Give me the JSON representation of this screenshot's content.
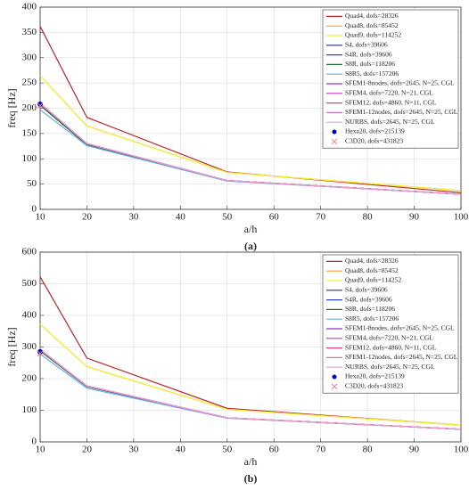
{
  "chart_data": [
    {
      "type": "line",
      "xlabel": "a/h",
      "ylabel": "freq [Hz]",
      "caption": "(a)",
      "x": [
        10,
        20,
        50,
        100
      ],
      "xlim": [
        10,
        100
      ],
      "xticks": [
        10,
        20,
        30,
        40,
        50,
        60,
        70,
        80,
        90,
        100
      ],
      "ylim": [
        0,
        400
      ],
      "yticks": [
        0,
        50,
        100,
        150,
        200,
        250,
        300,
        350,
        400
      ],
      "grid": true,
      "legend": "upper right",
      "series": [
        {
          "name": "Quad4, dofs=28326",
          "color": "#b5272d",
          "values": [
            362,
            182,
            74,
            33
          ]
        },
        {
          "name": "Quad8, dofs=85452",
          "color": "#f0a030",
          "values": [
            265,
            165,
            73,
            37
          ]
        },
        {
          "name": "Quad9, dofs=114252",
          "color": "#f2f230",
          "values": [
            265,
            165,
            73,
            37
          ]
        },
        {
          "name": "S4, dofs=39606",
          "color": "#2a2a80",
          "values": [
            206,
            128,
            57,
            30
          ]
        },
        {
          "name": "S4R, dofs=39606",
          "color": "#3344cc",
          "values": [
            206,
            128,
            57,
            30
          ]
        },
        {
          "name": "S8R, dofs=118206",
          "color": "#2e6b2e",
          "values": [
            206,
            128,
            57,
            30
          ]
        },
        {
          "name": "S8R5, dofs=157206",
          "color": "#66aaee",
          "values": [
            197,
            126,
            56,
            30
          ]
        },
        {
          "name": "SFEM1-8nodes, dofs=2645, N=25, CGL",
          "color": "#9933cc",
          "values": [
            210,
            130,
            57,
            30
          ]
        },
        {
          "name": "SFEM4, dofs=7220, N=21, CGL",
          "color": "#cc33cc",
          "values": [
            210,
            130,
            57,
            30
          ]
        },
        {
          "name": "SFEM12, dofs=4860, N=11, CGL",
          "color": "#e0408a",
          "values": [
            210,
            130,
            57,
            30
          ]
        },
        {
          "name": "SFEM1-12nodes, dofs=2645, N=25, CGL",
          "color": "#d070c0",
          "values": [
            210,
            130,
            57,
            30
          ]
        },
        {
          "name": "NURBS, dofs=2645, N=25, CGL",
          "color": "#e8a0c8",
          "values": [
            210,
            130,
            57,
            30
          ]
        },
        {
          "name": "Hexa20, dofs=215139",
          "color": "#0000cc",
          "marker": "circle",
          "values": [
            208,
            null,
            null,
            null
          ]
        },
        {
          "name": "C3D20, dofs=431823",
          "color": "#e08080",
          "marker": "x",
          "values": [
            205,
            null,
            null,
            null
          ]
        }
      ]
    },
    {
      "type": "line",
      "xlabel": "a/h",
      "ylabel": "freq [Hz]",
      "caption": "(b)",
      "x": [
        10,
        20,
        50,
        100
      ],
      "xlim": [
        10,
        100
      ],
      "xticks": [
        10,
        20,
        30,
        40,
        50,
        60,
        70,
        80,
        90,
        100
      ],
      "ylim": [
        0,
        600
      ],
      "yticks": [
        0,
        100,
        200,
        300,
        400,
        500,
        600
      ],
      "grid": true,
      "legend": "upper right",
      "series": [
        {
          "name": "Quad4, dofs=28326",
          "color": "#b5272d",
          "values": [
            522,
            265,
            106,
            53
          ]
        },
        {
          "name": "Quad8, dofs=85452",
          "color": "#f0a030",
          "values": [
            372,
            238,
            103,
            53
          ]
        },
        {
          "name": "Quad9, dofs=114252",
          "color": "#f2f230",
          "values": [
            372,
            238,
            103,
            53
          ]
        },
        {
          "name": "S4, dofs=39606",
          "color": "#2a2a80",
          "values": [
            288,
            175,
            76,
            40
          ]
        },
        {
          "name": "S4R, dofs=39606",
          "color": "#3344cc",
          "values": [
            288,
            175,
            76,
            40
          ]
        },
        {
          "name": "S8R, dofs=118206",
          "color": "#2e6b2e",
          "values": [
            288,
            175,
            76,
            40
          ]
        },
        {
          "name": "S8R5, dofs=157206",
          "color": "#66aaee",
          "values": [
            278,
            170,
            75,
            40
          ]
        },
        {
          "name": "SFEM1-8nodes, dofs=2645, N=25, CGL",
          "color": "#9933cc",
          "values": [
            292,
            177,
            76,
            40
          ]
        },
        {
          "name": "SFEM4, dofs=7220, N=21, CGL",
          "color": "#cc33cc",
          "values": [
            292,
            177,
            76,
            40
          ]
        },
        {
          "name": "SFEM12, dofs=4860, N=11, CGL",
          "color": "#e0408a",
          "values": [
            292,
            177,
            76,
            40
          ]
        },
        {
          "name": "SFEM1-12nodes, dofs=2645, N=25, CGL",
          "color": "#d070c0",
          "values": [
            292,
            177,
            76,
            40
          ]
        },
        {
          "name": "NURBS, dofs=2645, N=25, CGL",
          "color": "#e8a0c8",
          "values": [
            292,
            177,
            76,
            40
          ]
        },
        {
          "name": "Hexa20, dofs=215139",
          "color": "#0000cc",
          "marker": "circle",
          "values": [
            285,
            null,
            null,
            null
          ]
        },
        {
          "name": "C3D20, dofs=431823",
          "color": "#e08080",
          "marker": "x",
          "values": [
            280,
            null,
            null,
            null
          ]
        }
      ]
    }
  ]
}
